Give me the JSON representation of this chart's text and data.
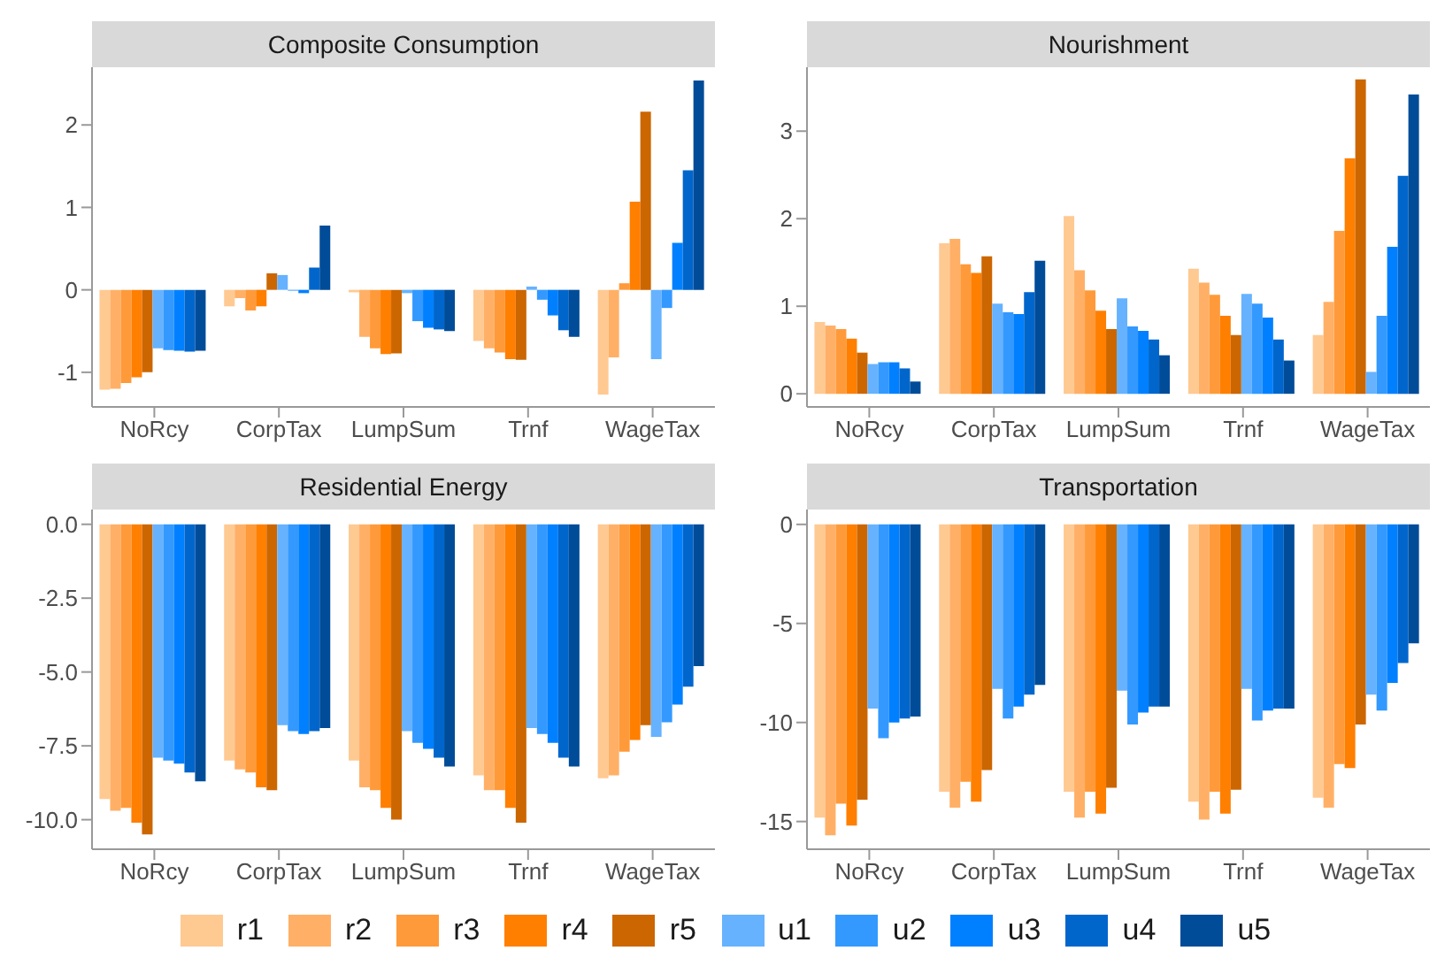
{
  "chart_data": [
    {
      "type": "bar",
      "title": "Composite Consumption",
      "categories": [
        "NoRcy",
        "CorpTax",
        "LumpSum",
        "Trnf",
        "WageTax"
      ],
      "ylim": [
        -1.42,
        2.7
      ],
      "yticks": [
        -1,
        0,
        1,
        2
      ],
      "grid": false,
      "legend": "bottom",
      "series": [
        {
          "name": "r1",
          "color": "#ffc992",
          "values": [
            -1.21,
            -0.2,
            -0.03,
            -0.62,
            -1.27
          ]
        },
        {
          "name": "r2",
          "color": "#ffb066",
          "values": [
            -1.2,
            -0.1,
            -0.57,
            -0.71,
            -0.82
          ]
        },
        {
          "name": "r3",
          "color": "#ff9a3a",
          "values": [
            -1.13,
            -0.25,
            -0.71,
            -0.76,
            0.08
          ]
        },
        {
          "name": "r4",
          "color": "#ff7f00",
          "values": [
            -1.06,
            -0.2,
            -0.78,
            -0.84,
            1.07
          ]
        },
        {
          "name": "r5",
          "color": "#cc6600",
          "values": [
            -1.0,
            0.2,
            -0.77,
            -0.85,
            2.16
          ]
        },
        {
          "name": "u1",
          "color": "#66b2ff",
          "values": [
            -0.71,
            0.18,
            -0.04,
            0.04,
            -0.84
          ]
        },
        {
          "name": "u2",
          "color": "#3399ff",
          "values": [
            -0.73,
            -0.01,
            -0.38,
            -0.12,
            -0.22
          ]
        },
        {
          "name": "u3",
          "color": "#0080ff",
          "values": [
            -0.74,
            -0.04,
            -0.46,
            -0.31,
            0.57
          ]
        },
        {
          "name": "u4",
          "color": "#0066cc",
          "values": [
            -0.75,
            0.27,
            -0.48,
            -0.49,
            1.45
          ]
        },
        {
          "name": "u5",
          "color": "#004c99",
          "values": [
            -0.74,
            0.78,
            -0.5,
            -0.57,
            2.54
          ]
        }
      ]
    },
    {
      "type": "bar",
      "title": "Nourishment",
      "categories": [
        "NoRcy",
        "CorpTax",
        "LumpSum",
        "Trnf",
        "WageTax"
      ],
      "ylim": [
        -0.15,
        3.73
      ],
      "yticks": [
        0,
        1,
        2,
        3
      ],
      "grid": false,
      "series": [
        {
          "color": "#ffc992",
          "values": [
            0.82,
            1.72,
            2.03,
            1.43,
            0.67
          ]
        },
        {
          "color": "#ffb066",
          "values": [
            0.78,
            1.77,
            1.41,
            1.27,
            1.05
          ]
        },
        {
          "color": "#ff9a3a",
          "values": [
            0.74,
            1.48,
            1.18,
            1.13,
            1.86
          ]
        },
        {
          "color": "#ff7f00",
          "values": [
            0.63,
            1.38,
            0.95,
            0.89,
            2.69
          ]
        },
        {
          "color": "#cc6600",
          "values": [
            0.47,
            1.57,
            0.74,
            0.67,
            3.59
          ]
        },
        {
          "color": "#66b2ff",
          "values": [
            0.34,
            1.03,
            1.09,
            1.14,
            0.25
          ]
        },
        {
          "color": "#3399ff",
          "values": [
            0.36,
            0.93,
            0.77,
            1.03,
            0.89
          ]
        },
        {
          "color": "#0080ff",
          "values": [
            0.36,
            0.91,
            0.72,
            0.87,
            1.68
          ]
        },
        {
          "color": "#0066cc",
          "values": [
            0.29,
            1.16,
            0.62,
            0.62,
            2.49
          ]
        },
        {
          "color": "#004c99",
          "values": [
            0.14,
            1.52,
            0.44,
            0.38,
            3.42
          ]
        }
      ]
    },
    {
      "type": "bar",
      "title": "Residential Energy",
      "categories": [
        "NoRcy",
        "CorpTax",
        "LumpSum",
        "Trnf",
        "WageTax"
      ],
      "ylim": [
        -11.0,
        0.5
      ],
      "yticks": [
        {
          "value": 0,
          "label": "0.0"
        },
        -2.5,
        {
          "value": -5,
          "label": "-5.0"
        },
        -7.5,
        {
          "value": -10,
          "label": "-10.0"
        }
      ],
      "grid": false,
      "series": [
        {
          "color": "#ffc992",
          "values": [
            -9.3,
            -8.0,
            -8.0,
            -8.5,
            -8.6
          ]
        },
        {
          "color": "#ffb066",
          "values": [
            -9.7,
            -8.3,
            -8.9,
            -9.0,
            -8.5
          ]
        },
        {
          "color": "#ff9a3a",
          "values": [
            -9.6,
            -8.4,
            -9.0,
            -9.0,
            -7.7
          ]
        },
        {
          "color": "#ff7f00",
          "values": [
            -10.1,
            -8.9,
            -9.6,
            -9.6,
            -7.3
          ]
        },
        {
          "color": "#cc6600",
          "values": [
            -10.5,
            -9.0,
            -10.0,
            -10.1,
            -6.8
          ]
        },
        {
          "color": "#66b2ff",
          "values": [
            -7.9,
            -6.8,
            -7.0,
            -6.9,
            -7.2
          ]
        },
        {
          "color": "#3399ff",
          "values": [
            -8.0,
            -7.0,
            -7.4,
            -7.1,
            -6.7
          ]
        },
        {
          "color": "#0080ff",
          "values": [
            -8.1,
            -7.1,
            -7.6,
            -7.4,
            -6.1
          ]
        },
        {
          "color": "#0066cc",
          "values": [
            -8.4,
            -7.0,
            -7.9,
            -7.9,
            -5.5
          ]
        },
        {
          "color": "#004c99",
          "values": [
            -8.7,
            -6.9,
            -8.2,
            -8.2,
            -4.8
          ]
        }
      ]
    },
    {
      "type": "bar",
      "title": "Transportation",
      "categories": [
        "NoRcy",
        "CorpTax",
        "LumpSum",
        "Trnf",
        "WageTax"
      ],
      "ylim": [
        -16.4,
        0.75
      ],
      "yticks": [
        0,
        -5,
        -10,
        -15
      ],
      "grid": false,
      "series": [
        {
          "color": "#ffc992",
          "values": [
            -14.8,
            -13.5,
            -13.5,
            -14.0,
            -13.8
          ]
        },
        {
          "color": "#ffb066",
          "values": [
            -15.7,
            -14.3,
            -14.8,
            -14.9,
            -14.3
          ]
        },
        {
          "color": "#ff9a3a",
          "values": [
            -14.1,
            -13.0,
            -13.5,
            -13.5,
            -12.1
          ]
        },
        {
          "color": "#ff7f00",
          "values": [
            -15.2,
            -14.0,
            -14.6,
            -14.6,
            -12.3
          ]
        },
        {
          "color": "#cc6600",
          "values": [
            -13.9,
            -12.4,
            -13.3,
            -13.4,
            -10.1
          ]
        },
        {
          "color": "#66b2ff",
          "values": [
            -9.3,
            -8.3,
            -8.4,
            -8.3,
            -8.6
          ]
        },
        {
          "color": "#3399ff",
          "values": [
            -10.8,
            -9.8,
            -10.1,
            -9.9,
            -9.4
          ]
        },
        {
          "color": "#0080ff",
          "values": [
            -10.0,
            -9.2,
            -9.5,
            -9.4,
            -8.0
          ]
        },
        {
          "color": "#0066cc",
          "values": [
            -9.8,
            -8.6,
            -9.2,
            -9.3,
            -7.0
          ]
        },
        {
          "color": "#004c99",
          "values": [
            -9.7,
            -8.1,
            -9.2,
            -9.3,
            -6.0
          ]
        }
      ]
    }
  ]
}
